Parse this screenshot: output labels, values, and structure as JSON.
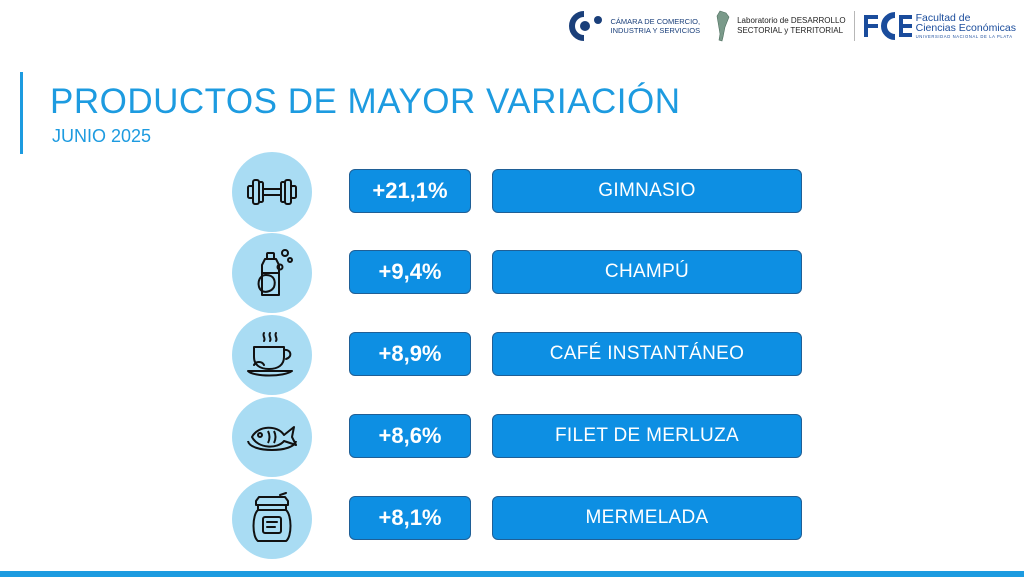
{
  "logos": {
    "ccis": {
      "line1": "CÁMARA DE COMERCIO,",
      "line2": "INDUSTRIA Y SERVICIOS"
    },
    "lab": {
      "line1": "Laboratorio de DESARROLLO",
      "line2": "SECTORIAL y TERRITORIAL"
    },
    "fce": {
      "line1": "Facultad de",
      "line2": "Ciencias Económicas",
      "line3": "UNIVERSIDAD NACIONAL DE LA PLATA"
    }
  },
  "header": {
    "title": "PRODUCTOS DE MAYOR VARIACIÓN",
    "subtitle": "JUNIO 2025"
  },
  "products": [
    {
      "icon": "dumbbell-icon",
      "variation": "+21,1%",
      "name": "GIMNASIO"
    },
    {
      "icon": "shampoo-icon",
      "variation": "+9,4%",
      "name": "CHAMPÚ"
    },
    {
      "icon": "coffee-cup-icon",
      "variation": "+8,9%",
      "name": "CAFÉ INSTANTÁNEO"
    },
    {
      "icon": "fish-icon",
      "variation": "+8,6%",
      "name": "FILET DE MERLUZA"
    },
    {
      "icon": "jam-jar-icon",
      "variation": "+8,1%",
      "name": "MERMELADA"
    }
  ],
  "colors": {
    "accent": "#1d9be0",
    "box": "#0d8fe3",
    "circle": "#a9dcf3"
  }
}
